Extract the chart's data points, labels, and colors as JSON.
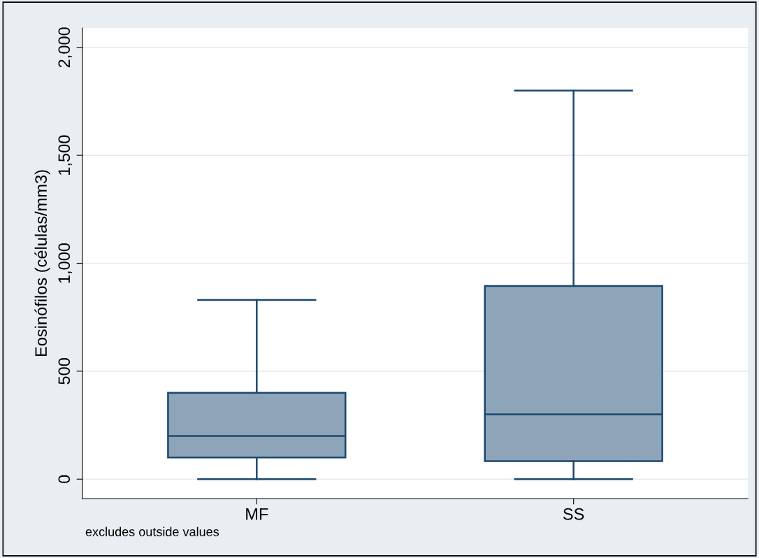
{
  "chart_data": {
    "type": "box",
    "ylabel": "Eosinófilos (células/mm3)",
    "categories": [
      "MF",
      "SS"
    ],
    "boxes": [
      {
        "low": 0,
        "q1": 100,
        "median": 200,
        "q3": 400,
        "high": 830
      },
      {
        "low": 0,
        "q1": 83,
        "median": 300,
        "q3": 895,
        "high": 1800
      }
    ],
    "color": "#8ea4b9",
    "ylim": [
      -90,
      2090
    ],
    "yticks": [
      0,
      500,
      {
        "value": 1000,
        "label": "1,000"
      },
      {
        "value": 1500,
        "label": "1,500"
      },
      {
        "value": 2000,
        "label": "2,000"
      }
    ],
    "grid": "y",
    "annotations": [
      "excludes outside values"
    ]
  }
}
